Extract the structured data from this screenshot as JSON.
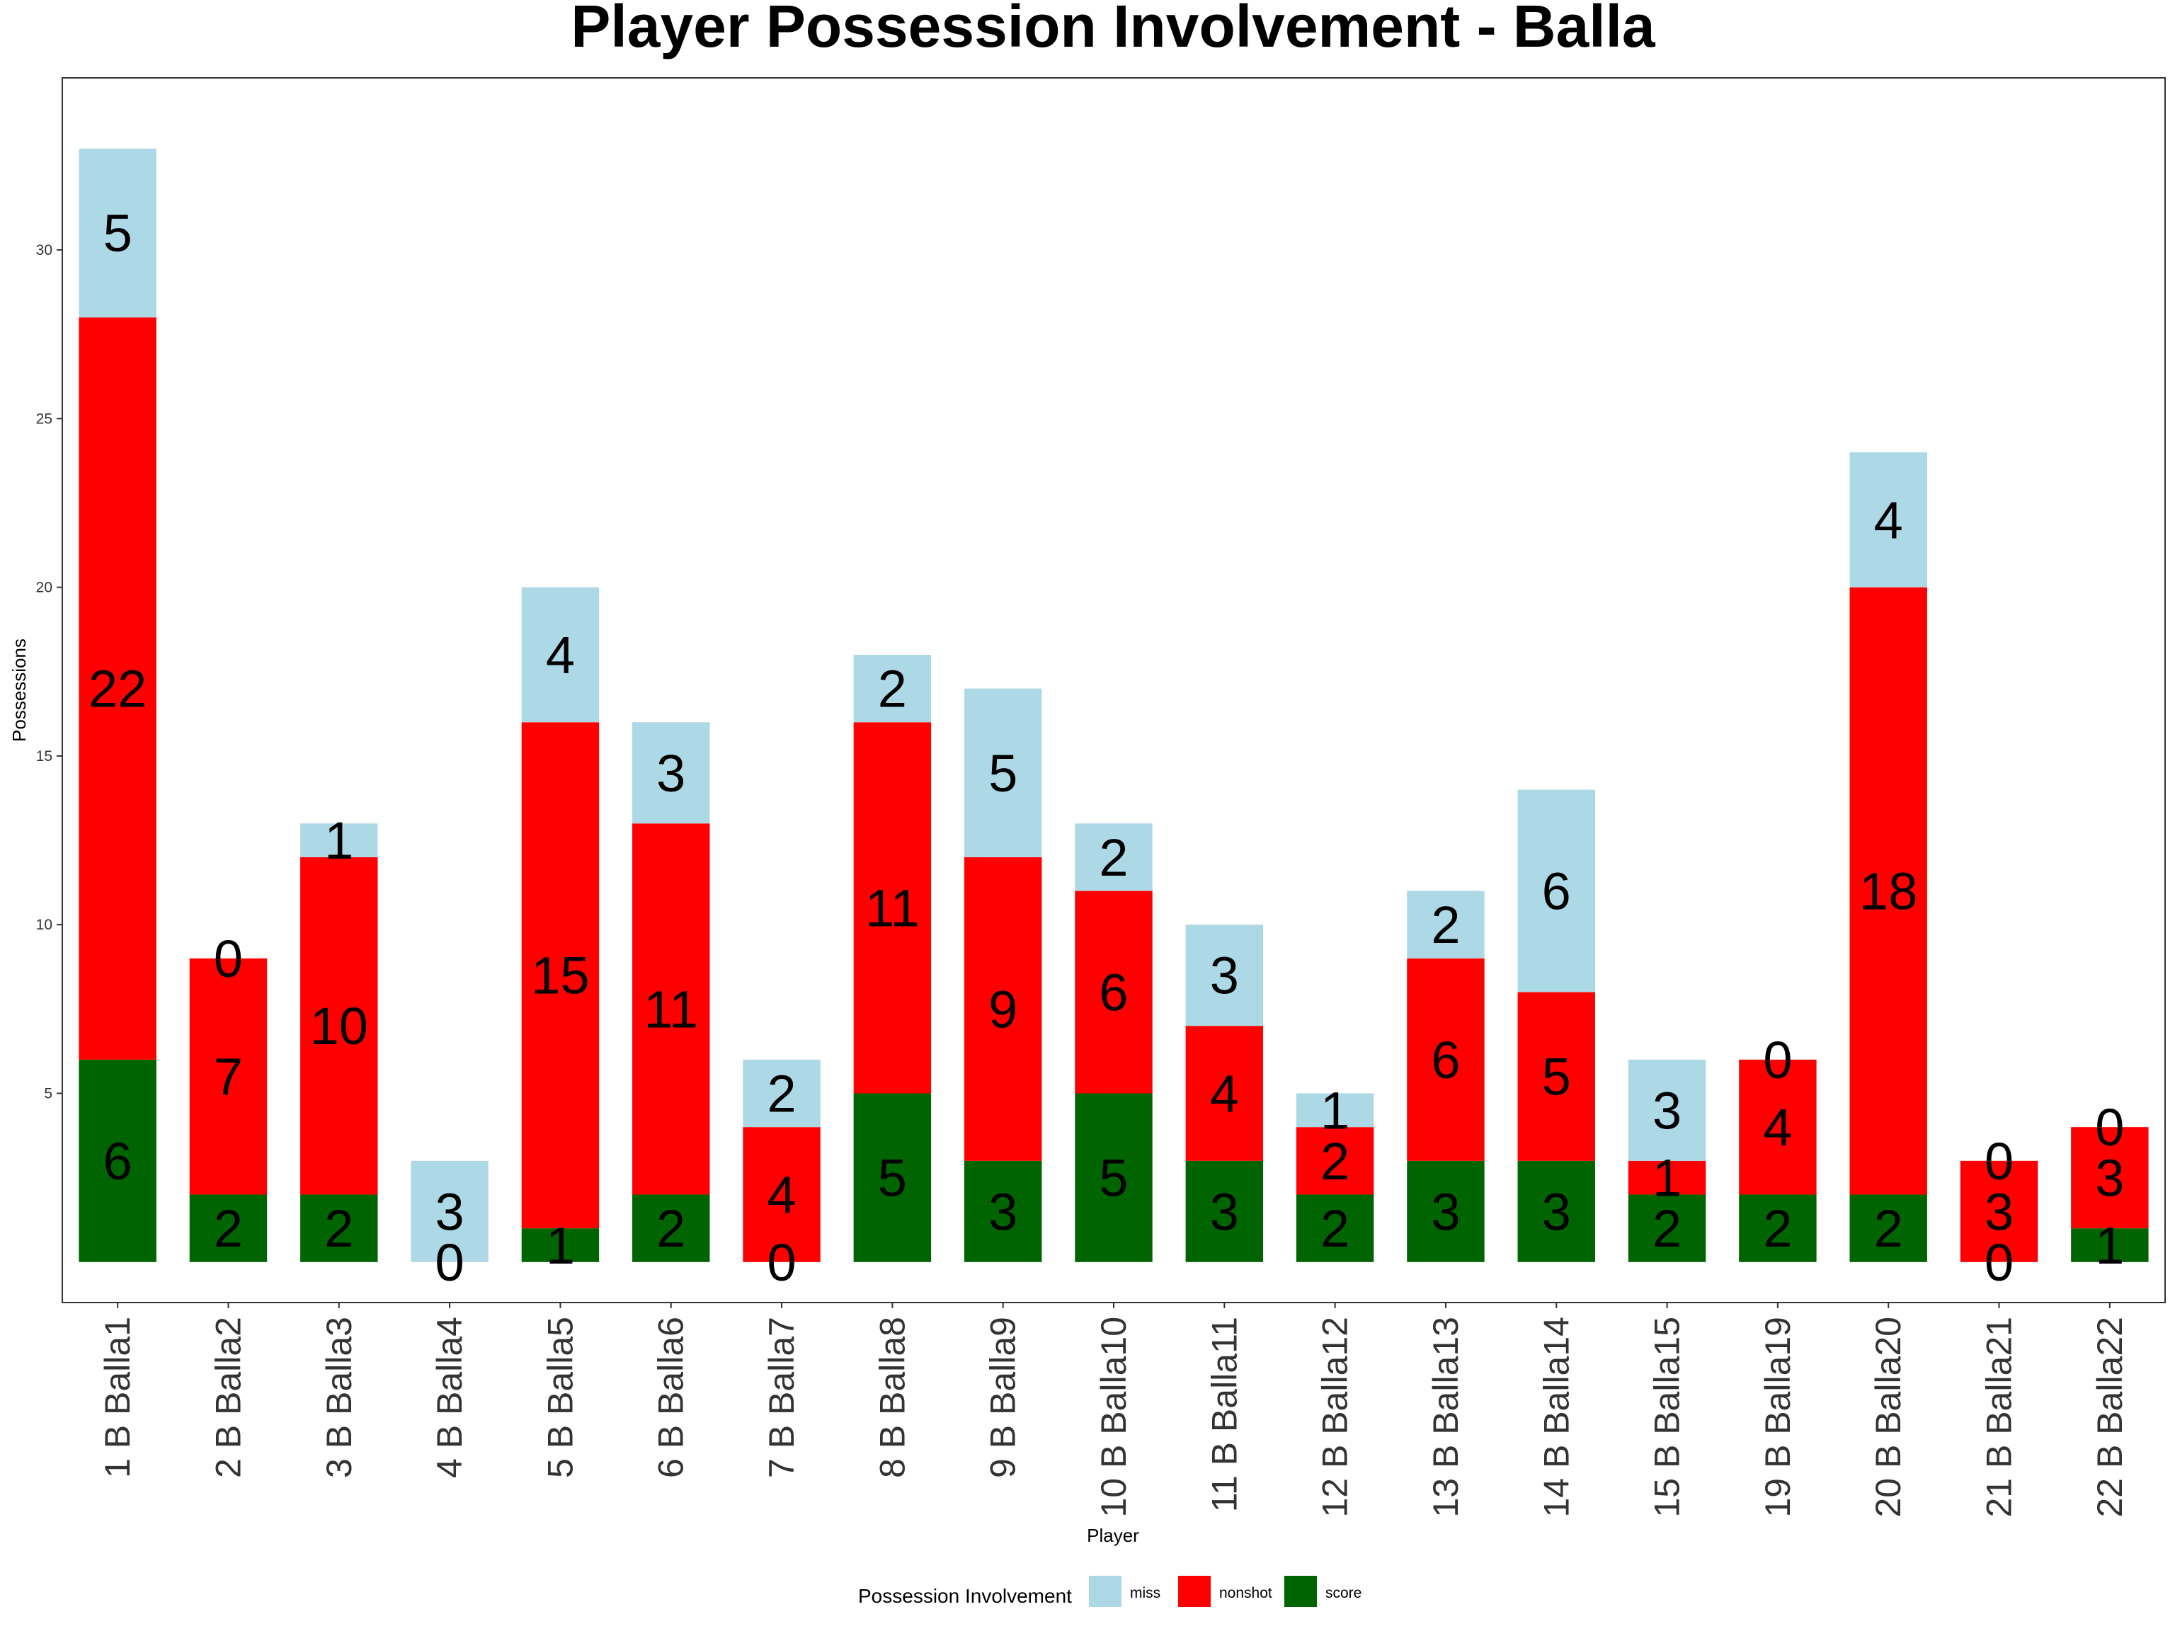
{
  "chart_data": {
    "type": "bar",
    "stacked": true,
    "title": "Player Possession Involvement - Balla",
    "xlabel": "Player",
    "ylabel": "Possessions",
    "ylim": [
      -1.2,
      35.1
    ],
    "yticks": [
      5,
      10,
      15,
      20,
      25,
      30
    ],
    "categories": [
      "1 B Balla1",
      "2 B Balla2",
      "3 B Balla3",
      "4 B Balla4",
      "5 B Balla5",
      "6 B Balla6",
      "7 B Balla7",
      "8 B Balla8",
      "9 B Balla9",
      "10 B Balla10",
      "11 B Balla11",
      "12 B Balla12",
      "13 B Balla13",
      "14 B Balla14",
      "15 B Balla15",
      "19 B Balla19",
      "20 B Balla20",
      "21 B Balla21",
      "22 B Balla22"
    ],
    "series": [
      {
        "name": "score",
        "color": "#006400",
        "values": [
          6,
          2,
          2,
          0,
          1,
          2,
          0,
          5,
          3,
          5,
          3,
          2,
          3,
          3,
          2,
          2,
          2,
          0,
          1
        ]
      },
      {
        "name": "nonshot",
        "color": "#FF0000",
        "values": [
          22,
          7,
          10,
          0,
          15,
          11,
          4,
          11,
          9,
          6,
          4,
          2,
          6,
          5,
          1,
          4,
          18,
          3,
          3
        ]
      },
      {
        "name": "miss",
        "color": "#ADD8E6",
        "values": [
          5,
          0,
          1,
          3,
          4,
          3,
          2,
          2,
          5,
          2,
          3,
          1,
          2,
          6,
          3,
          0,
          4,
          0,
          0
        ]
      }
    ],
    "legend": {
      "title": "Possession Involvement",
      "position": "bottom",
      "entries": [
        "miss",
        "nonshot",
        "score"
      ]
    },
    "grid": false
  }
}
